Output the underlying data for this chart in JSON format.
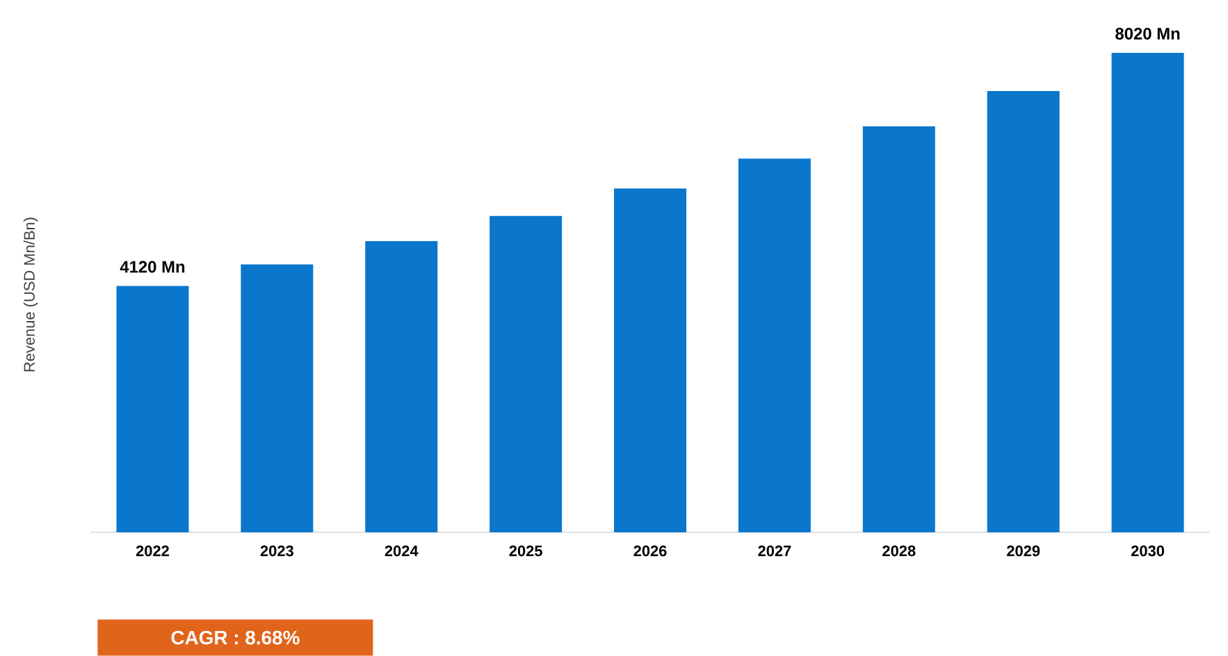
{
  "chart_data": {
    "type": "bar",
    "ylabel": "Revenue (USD Mn/Bn)",
    "categories": [
      "2022",
      "2023",
      "2024",
      "2025",
      "2026",
      "2027",
      "2028",
      "2029",
      "2030"
    ],
    "values": [
      4120,
      4480,
      4870,
      5290,
      5750,
      6250,
      6790,
      7380,
      8020
    ],
    "value_labels": [
      "4120 Mn",
      null,
      null,
      null,
      null,
      null,
      null,
      null,
      "8020 Mn"
    ],
    "color": "#0a77cd",
    "tick_labels": "x",
    "annotations": [
      "CAGR : 8.68%"
    ]
  }
}
